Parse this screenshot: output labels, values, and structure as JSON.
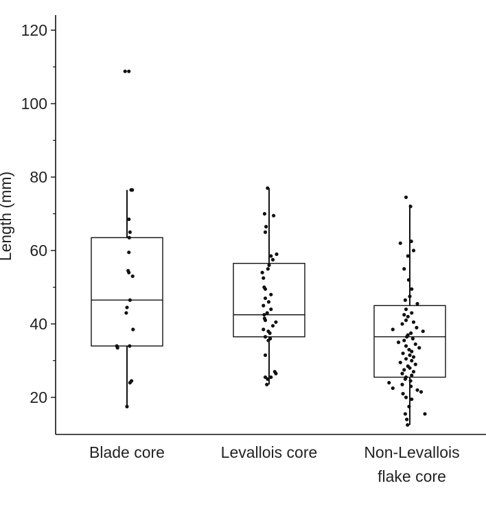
{
  "chart_data": {
    "type": "box",
    "ylabel": "Length (mm)",
    "ylim": [
      10,
      126
    ],
    "y_ticks": [
      20,
      40,
      60,
      80,
      100,
      120
    ],
    "y_minor_ticks": [
      30,
      50,
      70,
      90,
      110
    ],
    "grid": false,
    "categories": [
      {
        "label_lines": [
          "Blade core"
        ],
        "box": {
          "whisker_low": 17.5,
          "q1": 34,
          "median": 46.5,
          "q3": 63.5,
          "whisker_high": 76.5
        },
        "points": [
          [
            0.05,
            108.8
          ],
          [
            -0.05,
            108.8
          ],
          [
            0.11,
            76.5
          ],
          [
            0.14,
            76.5
          ],
          [
            0.05,
            68.5
          ],
          [
            0.08,
            65
          ],
          [
            0.06,
            63.5
          ],
          [
            0.05,
            59.5
          ],
          [
            0.15,
            53
          ],
          [
            0.03,
            54.5
          ],
          [
            0.05,
            54
          ],
          [
            0.08,
            46.5
          ],
          [
            0.0,
            44.5
          ],
          [
            -0.02,
            43
          ],
          [
            0.16,
            38.5
          ],
          [
            0.07,
            34
          ],
          [
            -0.27,
            34
          ],
          [
            -0.25,
            33.5
          ],
          [
            0.12,
            24.5
          ],
          [
            0.08,
            24
          ],
          [
            0.0,
            17.5
          ]
        ]
      },
      {
        "label_lines": [
          "Levallois core"
        ],
        "box": {
          "whisker_low": 23.5,
          "q1": 36.5,
          "median": 42.5,
          "q3": 56.5,
          "whisker_high": 77
        },
        "points": [
          [
            -0.04,
            77
          ],
          [
            0.12,
            69.5
          ],
          [
            -0.12,
            70
          ],
          [
            -0.08,
            66.5
          ],
          [
            -0.1,
            65
          ],
          [
            0.05,
            58.5
          ],
          [
            0.1,
            57.5
          ],
          [
            0.2,
            59
          ],
          [
            0.0,
            56
          ],
          [
            -0.03,
            55
          ],
          [
            -0.18,
            54
          ],
          [
            -0.15,
            52.5
          ],
          [
            -0.13,
            50
          ],
          [
            -0.1,
            49.5
          ],
          [
            0.05,
            48
          ],
          [
            -0.1,
            47
          ],
          [
            -0.01,
            46
          ],
          [
            -0.15,
            45
          ],
          [
            0.05,
            44
          ],
          [
            -0.05,
            43
          ],
          [
            -0.13,
            42.5
          ],
          [
            -0.12,
            41.5
          ],
          [
            -0.1,
            41
          ],
          [
            0.18,
            40.5
          ],
          [
            0.1,
            39.5
          ],
          [
            -0.15,
            38.5
          ],
          [
            -0.02,
            38
          ],
          [
            0.02,
            37.5
          ],
          [
            -0.1,
            36.5
          ],
          [
            0.03,
            36
          ],
          [
            -0.02,
            35.5
          ],
          [
            -0.1,
            31.5
          ],
          [
            0.15,
            27
          ],
          [
            0.18,
            26.5
          ],
          [
            0.05,
            25.5
          ],
          [
            -0.04,
            25
          ],
          [
            -0.1,
            25.5
          ],
          [
            -0.06,
            23.5
          ]
        ]
      },
      {
        "label_lines": [
          "Non-Levallois",
          "flake core"
        ],
        "box": {
          "whisker_low": 12.5,
          "q1": 25.5,
          "median": 36.5,
          "q3": 45,
          "whisker_high": 72.5
        },
        "points": [
          [
            -0.1,
            74.5
          ],
          [
            0.02,
            72
          ],
          [
            0.04,
            62.5
          ],
          [
            -0.25,
            62
          ],
          [
            0.1,
            60
          ],
          [
            -0.05,
            58.5
          ],
          [
            -0.15,
            55
          ],
          [
            -0.03,
            52
          ],
          [
            0.05,
            49.5
          ],
          [
            0.0,
            47.5
          ],
          [
            -0.12,
            46.5
          ],
          [
            0.2,
            45.5
          ],
          [
            -0.1,
            44
          ],
          [
            0.05,
            43
          ],
          [
            -0.15,
            42.5
          ],
          [
            -0.05,
            42
          ],
          [
            -0.1,
            41
          ],
          [
            0.1,
            40.5
          ],
          [
            -0.2,
            40
          ],
          [
            0.18,
            39
          ],
          [
            -0.45,
            38.5
          ],
          [
            0.35,
            38
          ],
          [
            0.03,
            37.5
          ],
          [
            -0.05,
            37
          ],
          [
            -0.08,
            36.5
          ],
          [
            0.08,
            36
          ],
          [
            -0.15,
            35.5
          ],
          [
            -0.3,
            35
          ],
          [
            0.15,
            34.5
          ],
          [
            -0.1,
            34
          ],
          [
            0.25,
            33.5
          ],
          [
            -0.02,
            33
          ],
          [
            0.05,
            32.5
          ],
          [
            -0.18,
            32
          ],
          [
            0.0,
            31.5
          ],
          [
            0.1,
            31
          ],
          [
            -0.1,
            30.5
          ],
          [
            0.05,
            30
          ],
          [
            -0.25,
            29.5
          ],
          [
            0.15,
            29
          ],
          [
            -0.05,
            28.5
          ],
          [
            0.0,
            28
          ],
          [
            -0.15,
            27.5
          ],
          [
            0.1,
            27
          ],
          [
            -0.2,
            26.5
          ],
          [
            0.05,
            26
          ],
          [
            -0.1,
            25.5
          ],
          [
            -0.12,
            25
          ],
          [
            0.02,
            24.5
          ],
          [
            -0.55,
            24
          ],
          [
            -0.2,
            23.5
          ],
          [
            0.03,
            23
          ],
          [
            -0.45,
            22.5
          ],
          [
            0.2,
            22
          ],
          [
            0.3,
            21.5
          ],
          [
            -0.18,
            21
          ],
          [
            -0.1,
            20
          ],
          [
            0.05,
            19.5
          ],
          [
            -0.02,
            17.5
          ],
          [
            -0.12,
            15.5
          ],
          [
            0.4,
            15.5
          ],
          [
            -0.08,
            14
          ],
          [
            -0.06,
            12.5
          ]
        ]
      }
    ]
  }
}
